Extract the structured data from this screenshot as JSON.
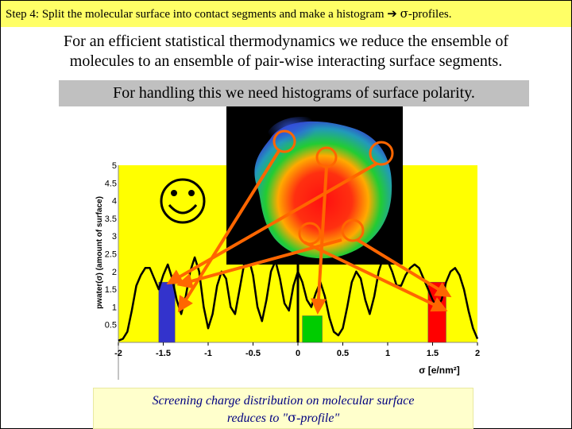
{
  "slide": {
    "title_prefix": "Step 4:   Split the molecular surface into contact segments and make a histogram ",
    "title_arrow": "➔",
    "title_sigma": "σ",
    "title_suffix": "-profiles.",
    "intro_line1": "For an efficient statistical thermodynamics we reduce the ensemble of",
    "intro_line2": "molecules to an ensemble of pair-wise interacting surface segments.",
    "note": "For handling this we need histograms of surface polarity.",
    "caption_line1": "Screening charge distribution on molecular surface",
    "caption_line2_pre": "reduces to \"",
    "caption_sigma": "σ",
    "caption_line2_post": "-profile\""
  },
  "colors": {
    "title_bar": "#ffff66",
    "chart_background": "#ffff00",
    "arrow": "#ff6600",
    "curve": "#000000",
    "bar_blue": "#3333cc",
    "bar_green": "#00cc00",
    "bar_red": "#ff0000",
    "caption_text": "#000080"
  },
  "chart_data": {
    "type": "line",
    "xlabel": "σ [e/nm²]",
    "ylabel": "pwater(σ) (amount of surface)",
    "xlim": [
      -2,
      2
    ],
    "ylim": [
      0,
      5
    ],
    "x_ticks": [
      "-2",
      "-1.5",
      "-1",
      "-0.5",
      "0",
      "0.5",
      "1",
      "1.5",
      "2"
    ],
    "y_ticks": [
      "0.5",
      "1",
      "1.5",
      "2",
      "2.5",
      "3",
      "3.5",
      "4",
      "4.5",
      "5"
    ],
    "series": [
      {
        "x": [
          -2.0,
          -1.95,
          -1.9,
          -1.85,
          -1.8,
          -1.75,
          -1.7,
          -1.65,
          -1.6,
          -1.55,
          -1.5,
          -1.45,
          -1.4,
          -1.35,
          -1.3,
          -1.25,
          -1.2,
          -1.15,
          -1.1,
          -1.05,
          -1.0,
          -0.95,
          -0.9,
          -0.85,
          -0.8,
          -0.75,
          -0.7,
          -0.65,
          -0.6,
          -0.55,
          -0.5,
          -0.45,
          -0.4,
          -0.35,
          -0.3,
          -0.25,
          -0.2,
          -0.15,
          -0.1,
          -0.05,
          0.0,
          0.05,
          0.1,
          0.15,
          0.2,
          0.25,
          0.3,
          0.35,
          0.4,
          0.45,
          0.5,
          0.55,
          0.6,
          0.65,
          0.7,
          0.75,
          0.8,
          0.85,
          0.9,
          0.95,
          1.0,
          1.05,
          1.1,
          1.15,
          1.2,
          1.25,
          1.3,
          1.35,
          1.4,
          1.45,
          1.5,
          1.55,
          1.6,
          1.65,
          1.7,
          1.75,
          1.8,
          1.85,
          1.9,
          1.95,
          2.0
        ],
        "y": [
          0.05,
          0.1,
          0.3,
          0.9,
          1.6,
          1.9,
          2.1,
          2.1,
          1.8,
          1.5,
          1.9,
          2.2,
          1.8,
          1.2,
          0.8,
          1.3,
          2.0,
          2.4,
          2.0,
          1.0,
          0.4,
          0.8,
          1.6,
          2.0,
          1.8,
          1.0,
          0.8,
          1.5,
          2.2,
          2.4,
          1.9,
          1.0,
          0.6,
          1.2,
          2.0,
          2.3,
          1.8,
          1.1,
          0.9,
          1.6,
          2.0,
          1.7,
          1.2,
          1.0,
          1.4,
          1.7,
          1.3,
          0.7,
          0.3,
          0.2,
          0.4,
          1.0,
          1.7,
          2.0,
          1.8,
          1.2,
          0.8,
          1.3,
          2.0,
          2.4,
          2.3,
          2.0,
          1.6,
          1.6,
          1.9,
          2.1,
          2.2,
          2.1,
          1.8,
          1.5,
          1.2,
          1.0,
          1.2,
          1.7,
          2.0,
          2.1,
          1.9,
          1.5,
          0.9,
          0.4,
          0.1
        ]
      }
    ],
    "bars": [
      {
        "x_from": -1.55,
        "x_to": -1.37,
        "value": 1.7,
        "color": "#3333cc"
      },
      {
        "x_from": 0.05,
        "x_to": 0.27,
        "value": 0.75,
        "color": "#00cc00"
      },
      {
        "x_from": 1.45,
        "x_to": 1.65,
        "value": 1.7,
        "color": "#ff0000"
      }
    ],
    "grid": false
  }
}
